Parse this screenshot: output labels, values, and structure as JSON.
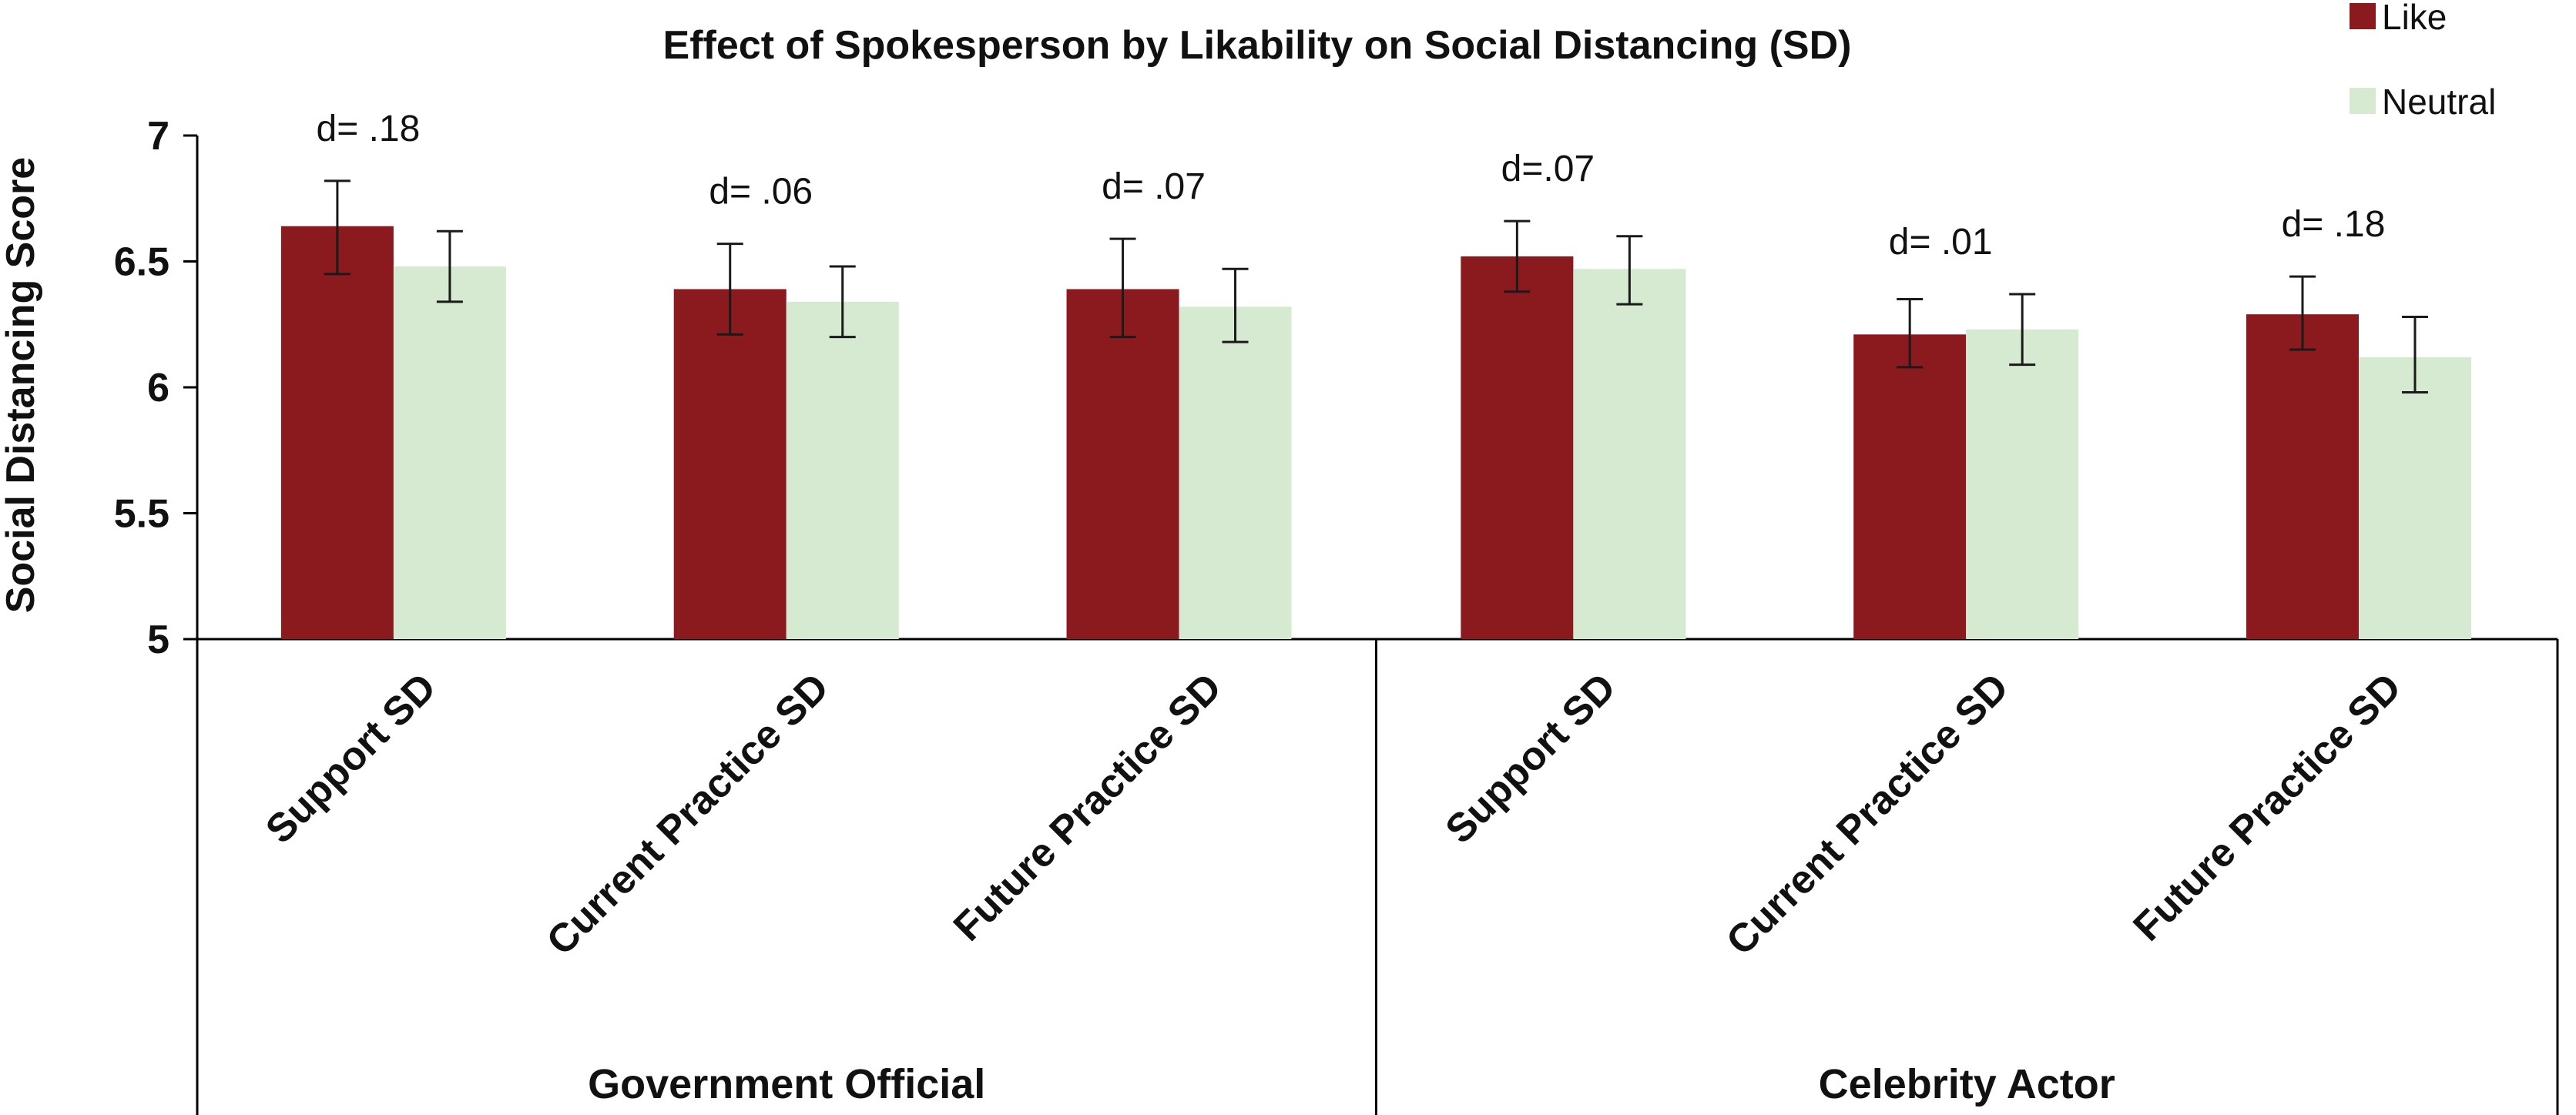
{
  "chart_data": {
    "type": "bar",
    "title": "Effect of Spokesperson by Likability on Social Distancing (SD)",
    "ylabel": "Social Distancing Score",
    "xlabel": "",
    "ylim": [
      5,
      7
    ],
    "yticks": [
      5,
      5.5,
      6,
      6.5,
      7
    ],
    "ytick_labels": [
      "5",
      "5.5",
      "6",
      "6.5",
      "7"
    ],
    "grid": false,
    "legend_position": "top-right",
    "categories": [
      "Support SD",
      "Current Practice SD",
      "Future Practice SD",
      "Support SD",
      "Current Practice SD",
      "Future Practice SD"
    ],
    "groups": [
      {
        "label": "Government Official",
        "category_indices": [
          0,
          1,
          2
        ]
      },
      {
        "label": "Celebrity Actor",
        "category_indices": [
          3,
          4,
          5
        ]
      }
    ],
    "series": [
      {
        "name": "Like",
        "color": "#8b1a1e",
        "values": [
          6.64,
          6.39,
          6.39,
          6.52,
          6.21,
          6.29
        ],
        "error_low": [
          6.45,
          6.21,
          6.2,
          6.38,
          6.08,
          6.15
        ],
        "error_high": [
          6.82,
          6.57,
          6.59,
          6.66,
          6.35,
          6.44
        ]
      },
      {
        "name": "Neutral",
        "color": "#d6ead2",
        "values": [
          6.48,
          6.34,
          6.32,
          6.47,
          6.23,
          6.12
        ],
        "error_low": [
          6.34,
          6.2,
          6.18,
          6.33,
          6.09,
          5.98
        ],
        "error_high": [
          6.62,
          6.48,
          6.47,
          6.6,
          6.37,
          6.28
        ]
      }
    ],
    "annotations": [
      "d= .18",
      "d= .06",
      "d= .07",
      "d=.07",
      "d= .01",
      "d= .18"
    ]
  }
}
